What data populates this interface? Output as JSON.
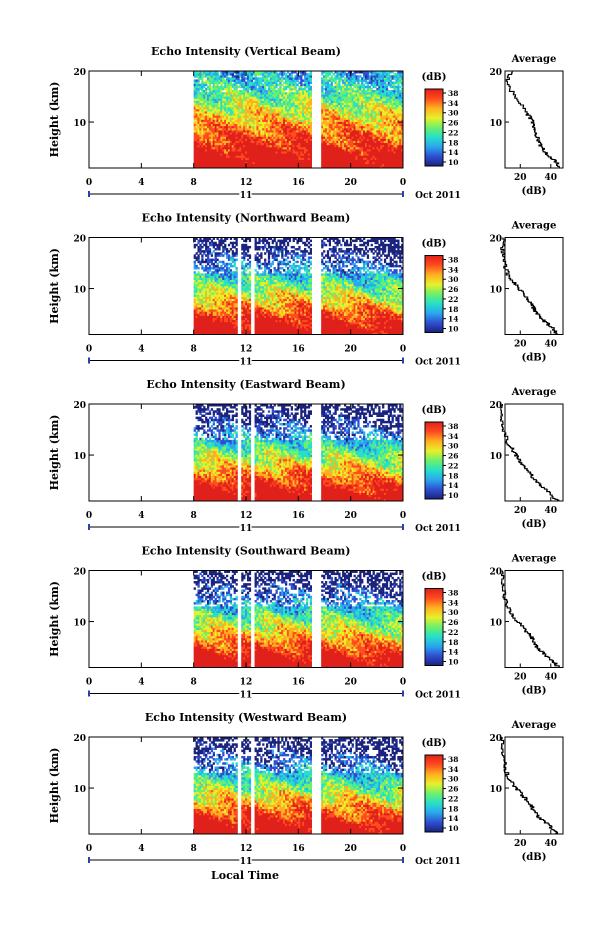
{
  "figure": {
    "x_axis_title": "Local Time",
    "day_label": "11",
    "month_label": "Oct 2011"
  },
  "colorbar": {
    "unit_label": "(dB)",
    "tick_labels": [
      "38",
      "34",
      "30",
      "26",
      "22",
      "18",
      "14",
      "10"
    ],
    "colors": [
      "#1a237e",
      "#2f4fd0",
      "#2aa6ef",
      "#26e0c8",
      "#6ef06a",
      "#e8f02a",
      "#ffb020",
      "#ff4b1f",
      "#e0201a"
    ]
  },
  "chart_data": [
    {
      "type": "heatmap",
      "title": "Echo Intensity (Vertical Beam)",
      "xlabel": "",
      "ylabel": "Height (km)",
      "xlim": [
        0,
        24
      ],
      "ylim": [
        1,
        20
      ],
      "x_ticks": [
        "0",
        "4",
        "8",
        "12",
        "16",
        "20",
        "0"
      ],
      "y_ticks": [
        "20",
        "10"
      ],
      "data_start_hour": 8,
      "data_gaps_hours": [
        [
          17,
          17.7
        ]
      ],
      "colorbar_range_db": [
        10,
        38
      ],
      "average_profile": {
        "title": "Average",
        "xlabel": "(dB)",
        "x_ticks": [
          "20",
          "40"
        ],
        "y_ticks": [
          "20",
          "10"
        ],
        "height_km": [
          1,
          2,
          3,
          4,
          5,
          6,
          7,
          8,
          9,
          10,
          11,
          12,
          14,
          16,
          18,
          20
        ],
        "db": [
          45,
          44,
          40,
          36,
          34,
          32,
          31,
          30,
          29,
          28,
          26,
          23,
          19,
          14,
          11,
          15
        ]
      }
    },
    {
      "type": "heatmap",
      "title": "Echo Intensity (Northward Beam)",
      "xlabel": "",
      "ylabel": "Height (km)",
      "xlim": [
        0,
        24
      ],
      "ylim": [
        1,
        20
      ],
      "x_ticks": [
        "0",
        "4",
        "8",
        "12",
        "16",
        "20",
        "0"
      ],
      "y_ticks": [
        "20",
        "10"
      ],
      "data_start_hour": 8,
      "data_gaps_hours": [
        [
          11.3,
          11.6
        ],
        [
          12.4,
          12.6
        ],
        [
          17,
          17.7
        ]
      ],
      "colorbar_range_db": [
        10,
        38
      ],
      "average_profile": {
        "title": "Average",
        "xlabel": "(dB)",
        "x_ticks": [
          "20",
          "40"
        ],
        "y_ticks": [
          "20",
          "10"
        ],
        "height_km": [
          1,
          2,
          3,
          4,
          5,
          6,
          7,
          8,
          9,
          10,
          11,
          12,
          14,
          16,
          18,
          20
        ],
        "db": [
          44,
          42,
          38,
          34,
          31,
          29,
          27,
          25,
          22,
          19,
          16,
          13,
          10,
          9,
          8,
          10
        ]
      }
    },
    {
      "type": "heatmap",
      "title": "Echo Intensity (Eastward Beam)",
      "xlabel": "",
      "ylabel": "Height (km)",
      "xlim": [
        0,
        24
      ],
      "ylim": [
        1,
        20
      ],
      "x_ticks": [
        "0",
        "4",
        "8",
        "12",
        "16",
        "20",
        "0"
      ],
      "y_ticks": [
        "20",
        "10"
      ],
      "data_start_hour": 8,
      "data_gaps_hours": [
        [
          11.3,
          11.6
        ],
        [
          12.4,
          12.6
        ],
        [
          17,
          17.7
        ]
      ],
      "colorbar_range_db": [
        10,
        38
      ],
      "average_profile": {
        "title": "Average",
        "xlabel": "(dB)",
        "x_ticks": [
          "20",
          "40"
        ],
        "y_ticks": [
          "20",
          "10"
        ],
        "height_km": [
          1,
          2,
          3,
          4,
          5,
          6,
          7,
          8,
          9,
          10,
          11,
          12,
          14,
          16,
          18,
          20
        ],
        "db": [
          44,
          41,
          37,
          33,
          30,
          27,
          25,
          22,
          19,
          17,
          15,
          12,
          10,
          8,
          8,
          9
        ]
      }
    },
    {
      "type": "heatmap",
      "title": "Echo Intensity (Southward Beam)",
      "xlabel": "",
      "ylabel": "Height (km)",
      "xlim": [
        0,
        24
      ],
      "ylim": [
        1,
        20
      ],
      "x_ticks": [
        "0",
        "4",
        "8",
        "12",
        "16",
        "20",
        "0"
      ],
      "y_ticks": [
        "20",
        "10"
      ],
      "data_start_hour": 8,
      "data_gaps_hours": [
        [
          11.3,
          11.6
        ],
        [
          12.4,
          12.6
        ],
        [
          17,
          17.7
        ]
      ],
      "colorbar_range_db": [
        10,
        38
      ],
      "average_profile": {
        "title": "Average",
        "xlabel": "(dB)",
        "x_ticks": [
          "20",
          "40"
        ],
        "y_ticks": [
          "20",
          "10"
        ],
        "height_km": [
          1,
          2,
          3,
          4,
          5,
          6,
          7,
          8,
          9,
          10,
          11,
          12,
          14,
          16,
          18,
          20
        ],
        "db": [
          45,
          42,
          38,
          34,
          31,
          29,
          27,
          24,
          21,
          18,
          15,
          13,
          10,
          9,
          8,
          9
        ]
      }
    },
    {
      "type": "heatmap",
      "title": "Echo Intensity (Westward Beam)",
      "xlabel": "Local Time",
      "ylabel": "Height (km)",
      "xlim": [
        0,
        24
      ],
      "ylim": [
        1,
        20
      ],
      "x_ticks": [
        "0",
        "4",
        "8",
        "12",
        "16",
        "20",
        "0"
      ],
      "y_ticks": [
        "20",
        "10"
      ],
      "data_start_hour": 8,
      "data_gaps_hours": [
        [
          11.3,
          11.6
        ],
        [
          12.4,
          12.6
        ],
        [
          17,
          17.7
        ]
      ],
      "colorbar_range_db": [
        10,
        38
      ],
      "average_profile": {
        "title": "Average",
        "xlabel": "(dB)",
        "x_ticks": [
          "20",
          "40"
        ],
        "y_ticks": [
          "20",
          "10"
        ],
        "height_km": [
          1,
          2,
          3,
          4,
          5,
          6,
          7,
          8,
          9,
          10,
          11,
          12,
          14,
          16,
          18,
          20
        ],
        "db": [
          44,
          41,
          37,
          33,
          30,
          28,
          26,
          23,
          20,
          17,
          15,
          12,
          10,
          9,
          8,
          9
        ]
      }
    }
  ]
}
